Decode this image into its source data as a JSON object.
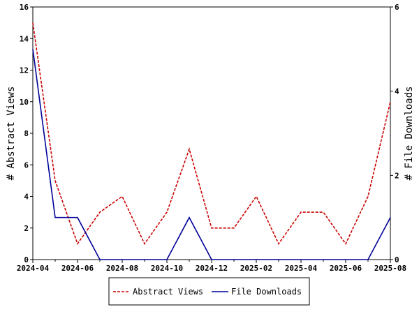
{
  "chart_data": {
    "type": "line",
    "x": [
      "2024-04",
      "2024-05",
      "2024-06",
      "2024-07",
      "2024-08",
      "2024-09",
      "2024-10",
      "2024-11",
      "2024-12",
      "2025-01",
      "2025-02",
      "2025-03",
      "2025-04",
      "2025-05",
      "2025-06",
      "2025-07",
      "2025-08"
    ],
    "x_tick_labels": [
      "2024-04",
      "2024-06",
      "2024-08",
      "2024-10",
      "2024-12",
      "2025-02",
      "2025-04",
      "2025-06",
      "2025-08"
    ],
    "series": [
      {
        "name": "Abstract Views",
        "axis": "left",
        "color": "#cc0000",
        "dash": "dashed",
        "values": [
          15,
          5,
          1,
          3,
          4,
          1,
          3,
          7,
          2,
          2,
          4,
          1,
          3,
          3,
          1,
          4,
          10
        ]
      },
      {
        "name": "File Downloads",
        "axis": "right",
        "color": "#000099",
        "dash": "solid",
        "values": [
          5,
          1,
          1,
          0,
          0,
          0,
          0,
          1,
          0,
          0,
          0,
          0,
          0,
          0,
          0,
          0,
          1
        ]
      }
    ],
    "ylabel": "# Abstract Views",
    "ylim": [
      0,
      16
    ],
    "y_ticks": [
      0,
      2,
      4,
      6,
      8,
      10,
      12,
      14,
      16
    ],
    "y2label": "# File Downloads",
    "y2lim": [
      0,
      6
    ],
    "y2_ticks": [
      0,
      2,
      4,
      6
    ],
    "grid": false,
    "legend_position": "bottom"
  }
}
